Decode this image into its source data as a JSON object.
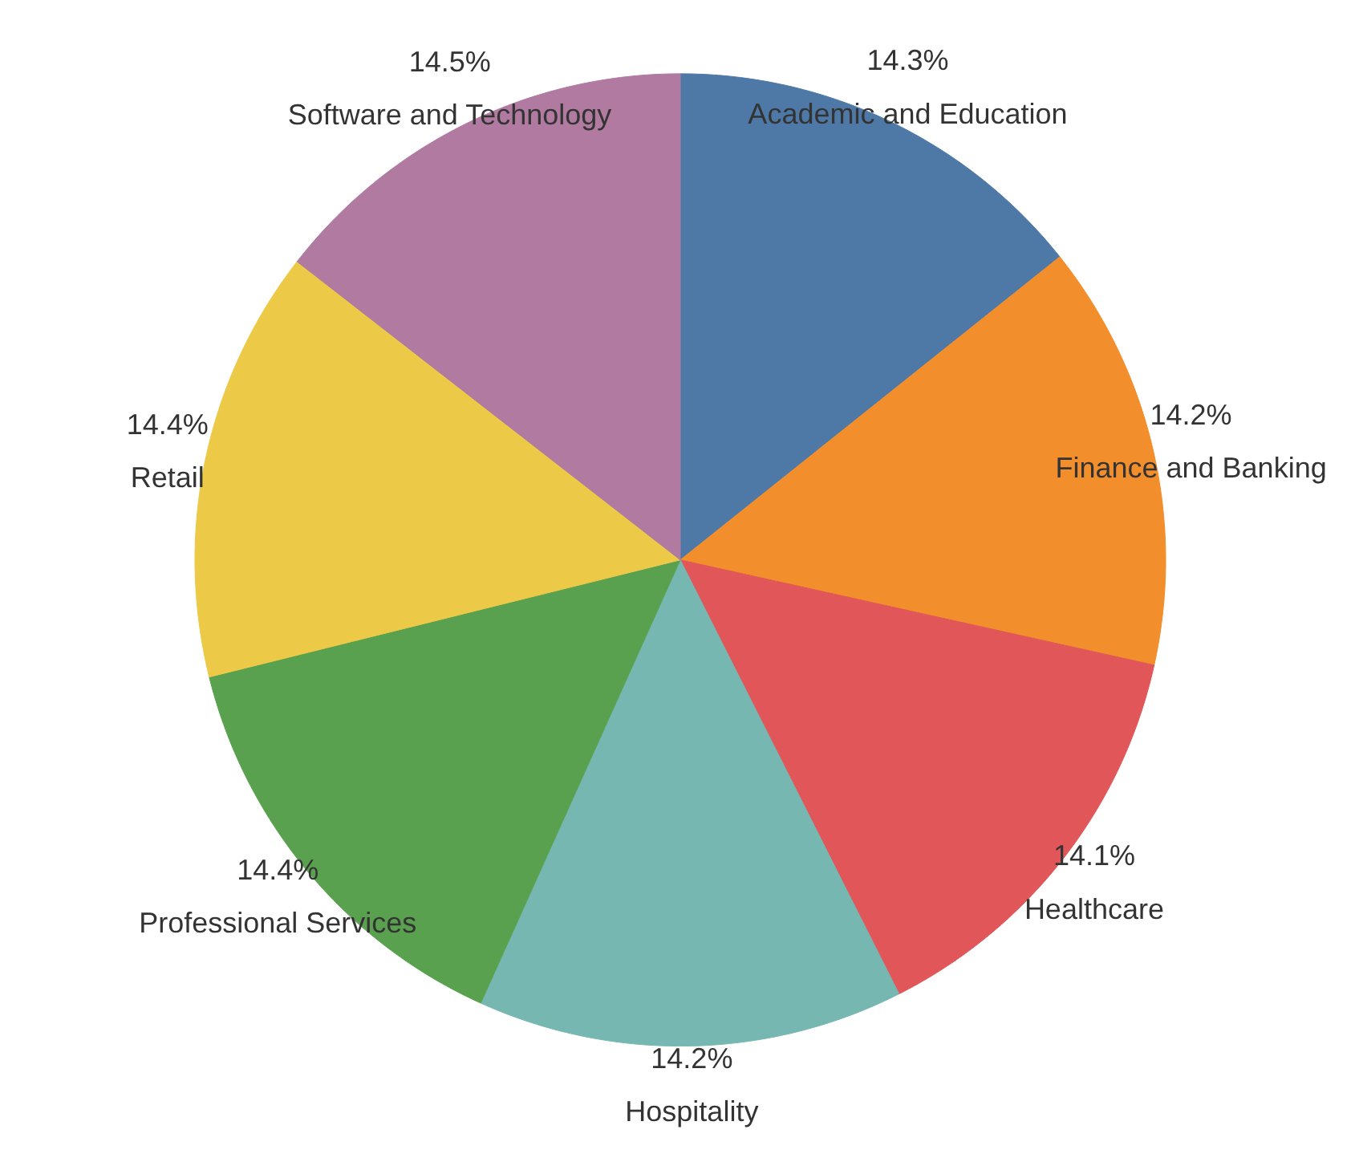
{
  "chart_data": {
    "type": "pie",
    "categories": [
      "Academic and Education",
      "Finance and Banking",
      "Healthcare",
      "Hospitality",
      "Professional Services",
      "Retail",
      "Software and Technology"
    ],
    "values": [
      14.3,
      14.2,
      14.1,
      14.2,
      14.4,
      14.4,
      14.5
    ],
    "value_labels": [
      "14.3%",
      "14.2%",
      "14.1%",
      "14.2%",
      "14.4%",
      "14.4%",
      "14.5%"
    ],
    "colors": [
      "#4e79a7",
      "#f28e2b",
      "#e15759",
      "#76b7b2",
      "#59a14f",
      "#edc948",
      "#b07aa1"
    ]
  }
}
